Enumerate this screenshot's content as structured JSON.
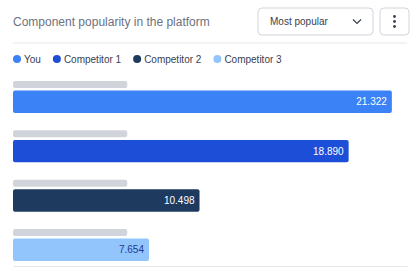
{
  "chart_data": {
    "type": "bar",
    "orientation": "horizontal",
    "title": "Component popularity in the platform",
    "annotations": [
      "Most popular"
    ],
    "categories": [
      "You",
      "Competitor 1",
      "Competitor 2",
      "Competitor 3"
    ],
    "values": [
      21.322,
      18.89,
      10.498,
      7.654
    ],
    "value_labels": [
      "21.322",
      "18.890",
      "10.498",
      "7.654"
    ],
    "colors": [
      "#3b82f6",
      "#1d4ed8",
      "#1e3a5f",
      "#93c5fd"
    ],
    "data_labels": true,
    "xlim": [
      0,
      22.17488
    ],
    "tick_labels": false,
    "legend": "upper left"
  }
}
